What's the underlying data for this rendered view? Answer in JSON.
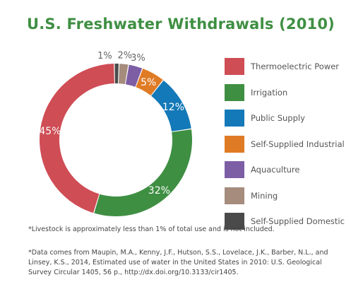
{
  "chart_data": {
    "type": "pie",
    "title": "U.S. Freshwater Withdrawals (2010)",
    "series": [
      {
        "name": "Thermoelectric Power",
        "value": 45,
        "label": "45%",
        "color": "#cf4d55"
      },
      {
        "name": "Irrigation",
        "value": 32,
        "label": "32%",
        "color": "#3f8f43"
      },
      {
        "name": "Public Supply",
        "value": 12,
        "label": "12%",
        "color": "#1479b8"
      },
      {
        "name": "Self-Supplied Industrial",
        "value": 5,
        "label": "5%",
        "color": "#e07b25"
      },
      {
        "name": "Aquaculture",
        "value": 3,
        "label": "3%",
        "color": "#7d5ea5"
      },
      {
        "name": "Mining",
        "value": 2,
        "label": "2%",
        "color": "#a58c7d"
      },
      {
        "name": "Self-Supplied Domestic",
        "value": 1,
        "label": "1%",
        "color": "#4a4a4a"
      }
    ],
    "legend_position": "right"
  },
  "notes": {
    "livestock": "*Livestock is approximately less than 1% of total use and is not included.",
    "source": "*Data comes from Maupin, M.A., Kenny, J.F., Hutson, S.S., Lovelace, J.K., Barber, N.L., and Linsey, K.S., 2014, Estimated use of water in the United States in 2010: U.S. Geological Survey Circular 1405, 56 p., http://dx.doi.org/10.3133/cir1405."
  }
}
